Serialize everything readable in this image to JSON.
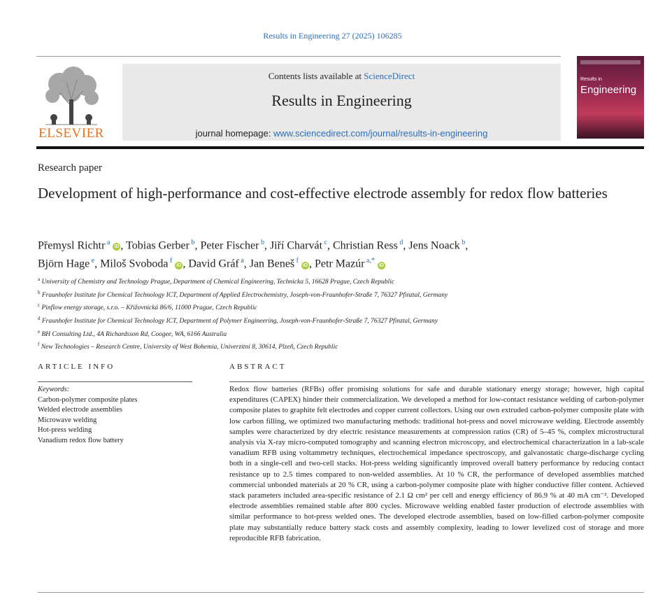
{
  "citation": "Results in Engineering 27 (2025) 106285",
  "header": {
    "publisher_logo_text": "ELSEVIER",
    "contents_prefix": "Contents lists available at ",
    "contents_link": "ScienceDirect",
    "journal_name": "Results in Engineering",
    "homepage_prefix": "journal homepage: ",
    "homepage_url": "www.sciencedirect.com/journal/results-in-engineering",
    "cover_small": "Results in",
    "cover_big": "Engineering"
  },
  "article": {
    "type": "Research paper",
    "title": "Development of high-performance and cost-effective electrode assembly for redox flow batteries"
  },
  "authors": [
    {
      "name": "Přemysl Richtr",
      "sup": "a",
      "orcid": true,
      "sep": ", "
    },
    {
      "name": "Tobias Gerber",
      "sup": "b",
      "orcid": false,
      "sep": ", "
    },
    {
      "name": "Peter Fischer",
      "sup": "b",
      "orcid": false,
      "sep": ", "
    },
    {
      "name": "Jiří Charvát",
      "sup": "c",
      "orcid": false,
      "sep": ", "
    },
    {
      "name": "Christian Ress",
      "sup": "d",
      "orcid": false,
      "sep": ", "
    },
    {
      "name": "Jens Noack",
      "sup": "b",
      "orcid": false,
      "sep": ","
    },
    {
      "name": "Björn Hage",
      "sup": "e",
      "orcid": false,
      "sep": ", "
    },
    {
      "name": "Miloš Svoboda",
      "sup": "f",
      "orcid": true,
      "sep": ", "
    },
    {
      "name": "David Gráf",
      "sup": "a",
      "orcid": false,
      "sep": ", "
    },
    {
      "name": "Jan Beneš",
      "sup": "f",
      "orcid": true,
      "sep": ", "
    },
    {
      "name": "Petr Mazúr",
      "sup": "a,*",
      "orcid": true,
      "sep": ""
    }
  ],
  "affiliations": [
    {
      "sup": "a",
      "text": "University of Chemistry and Technology Prague, Department of Chemical Engineering, Technicka 5, 16628 Prague, Czech Republic"
    },
    {
      "sup": "b",
      "text": "Fraunhofer Institute for Chemical Technology ICT, Department of Applied Electrochemistry, Joseph-von-Fraunhofer-Straße 7, 76327 Pfinztal, Germany"
    },
    {
      "sup": "c",
      "text": "Pinflow energy storage, s.r.o. – Křižovnická 86/6, 11000 Prague, Czech Republic"
    },
    {
      "sup": "d",
      "text": "Fraunhofer Institute for Chemical Technology ICT, Department of Polymer Engineering, Joseph-von-Fraunhofer-Straße 7, 76327 Pfinztal, Germany"
    },
    {
      "sup": "e",
      "text": "BH Consulting Ltd., 4A Richardsson Rd, Coogee, WA, 6166 Australia"
    },
    {
      "sup": "f",
      "text": "New Technologies – Research Centre, University of West Bohemia, Univerzitní 8, 30614, Plzeň, Czech Republic"
    }
  ],
  "article_info": {
    "heading": "ARTICLE INFO",
    "keywords_label": "Keywords:",
    "keywords": [
      "Carbon-polymer composite plates",
      "Welded electrode assemblies",
      "Microwave welding",
      "Hot-press welding",
      "Vanadium redox flow battery"
    ]
  },
  "abstract": {
    "heading": "ABSTRACT",
    "text": "Redox flow batteries (RFBs) offer promising solutions for safe and durable stationary energy storage; however, high capital expenditures (CAPEX) hinder their commercialization. We developed a method for low-contact resistance welding of carbon-polymer composite plates to graphite felt electrodes and copper current collectors. Using our own extruded carbon-polymer composite plate with low carbon filling, we optimized two manufacturing methods: traditional hot-press and novel microwave welding. Electrode assembly samples were characterized by dry electric resistance measurements at compression ratios (CR) of 5–45 %, complex microstructural analysis via X-ray micro-computed tomography and scanning electron microscopy, and electrochemical characterization in a lab-scale vanadium RFB using voltammetry techniques, electrochemical impedance spectroscopy, and galvanostatic charge-discharge cycling both in a single-cell and two-cell stacks. Hot-press welding significantly improved overall battery performance by reducing contact resistance up to 2.5 times compared to non-welded assemblies. At 10 % CR, the performance of developed assemblies matched commercial unbonded materials at 20 % CR, using a carbon-polymer composite plate with higher conductive filler content. Achieved stack parameters included area-specific resistance of 2.1 Ω cm² per cell and energy efficiency of 86.9 % at 40 mA cm⁻². Developed electrode assemblies remained stable after 800 cycles. Microwave welding enabled faster production of electrode assemblies with similar performance to hot-press welded ones. The developed electrode assemblies, based on low-filled carbon-polymer composite plate may substantially reduce battery stack costs and assembly complexity, leading to lower levelized cost of storage and more reproducible RFB fabrication."
  }
}
